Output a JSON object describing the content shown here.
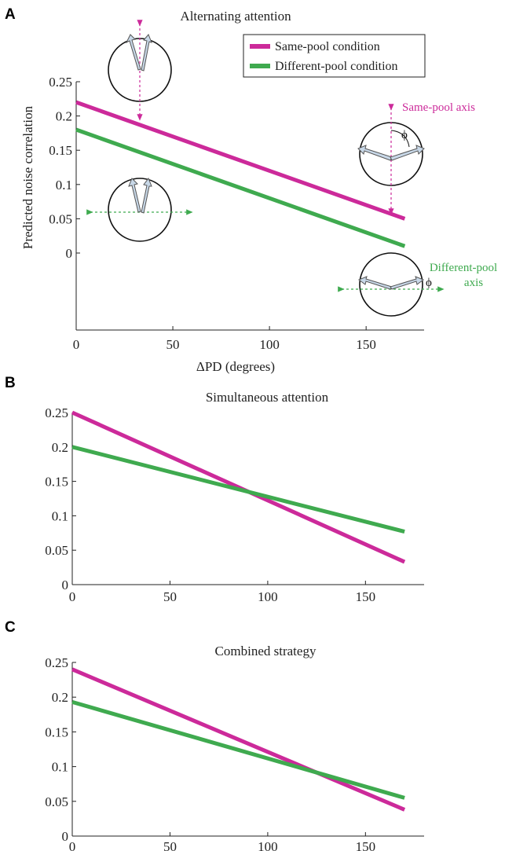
{
  "colors": {
    "same": "#cc2a9a",
    "diff": "#3faa4f",
    "arrow_fill": "#c8d8e8",
    "arrow_stroke": "#555555"
  },
  "panels": [
    {
      "letter": "A",
      "title": "Alternating attention"
    },
    {
      "letter": "B",
      "title": "Simultaneous attention"
    },
    {
      "letter": "C",
      "title": "Combined strategy"
    }
  ],
  "legend": {
    "same": "Same-pool condition",
    "diff": "Different-pool condition"
  },
  "annotations": {
    "same_axis": "Same-pool axis",
    "diff_axis_line1": "Different-pool",
    "diff_axis_line2": "axis",
    "phi": "ϕ"
  },
  "chart_data": [
    {
      "type": "line",
      "title": "Alternating attention",
      "xlabel": "ΔPD (degrees)",
      "ylabel": "Predicted noise correlation",
      "xlim": [
        0,
        180
      ],
      "ylim": [
        -0.11,
        0.25
      ],
      "xticks": [
        0,
        50,
        100,
        150
      ],
      "xtick_labels": [
        "0",
        "50",
        "100",
        "150"
      ],
      "yticks": [
        0,
        0.05,
        0.1,
        0.15,
        0.2,
        0.25
      ],
      "ytick_labels": [
        "0",
        "0.05",
        "0.1",
        "0.15",
        "0.2",
        "0.25"
      ],
      "legend_position": "top-right",
      "series": [
        {
          "name": "Same-pool condition",
          "key": "same",
          "x": [
            0,
            170
          ],
          "y": [
            0.22,
            0.05
          ]
        },
        {
          "name": "Different-pool condition",
          "key": "diff",
          "x": [
            0,
            170
          ],
          "y": [
            0.18,
            0.01
          ]
        }
      ]
    },
    {
      "type": "line",
      "title": "Simultaneous attention",
      "xlim": [
        0,
        180
      ],
      "ylim": [
        0,
        0.25
      ],
      "xticks": [
        0,
        50,
        100,
        150
      ],
      "xtick_labels": [
        "0",
        "50",
        "100",
        "150"
      ],
      "yticks": [
        0,
        0.05,
        0.1,
        0.15,
        0.2,
        0.25
      ],
      "ytick_labels": [
        "0",
        "0.05",
        "0.1",
        "0.15",
        "0.2",
        "0.25"
      ],
      "series": [
        {
          "key": "same",
          "x": [
            0,
            170
          ],
          "y": [
            0.25,
            0.033
          ]
        },
        {
          "key": "diff",
          "x": [
            0,
            170
          ],
          "y": [
            0.2,
            0.077
          ]
        }
      ]
    },
    {
      "type": "line",
      "title": "Combined strategy",
      "xlim": [
        0,
        180
      ],
      "ylim": [
        0,
        0.25
      ],
      "xticks": [
        0,
        50,
        100,
        150
      ],
      "xtick_labels": [
        "0",
        "50",
        "100",
        "150"
      ],
      "yticks": [
        0,
        0.05,
        0.1,
        0.15,
        0.2,
        0.25
      ],
      "ytick_labels": [
        "0",
        "0.05",
        "0.1",
        "0.15",
        "0.2",
        "0.25"
      ],
      "series": [
        {
          "key": "same",
          "x": [
            0,
            170
          ],
          "y": [
            0.24,
            0.038
          ]
        },
        {
          "key": "diff",
          "x": [
            0,
            170
          ],
          "y": [
            0.193,
            0.055
          ]
        }
      ]
    }
  ]
}
